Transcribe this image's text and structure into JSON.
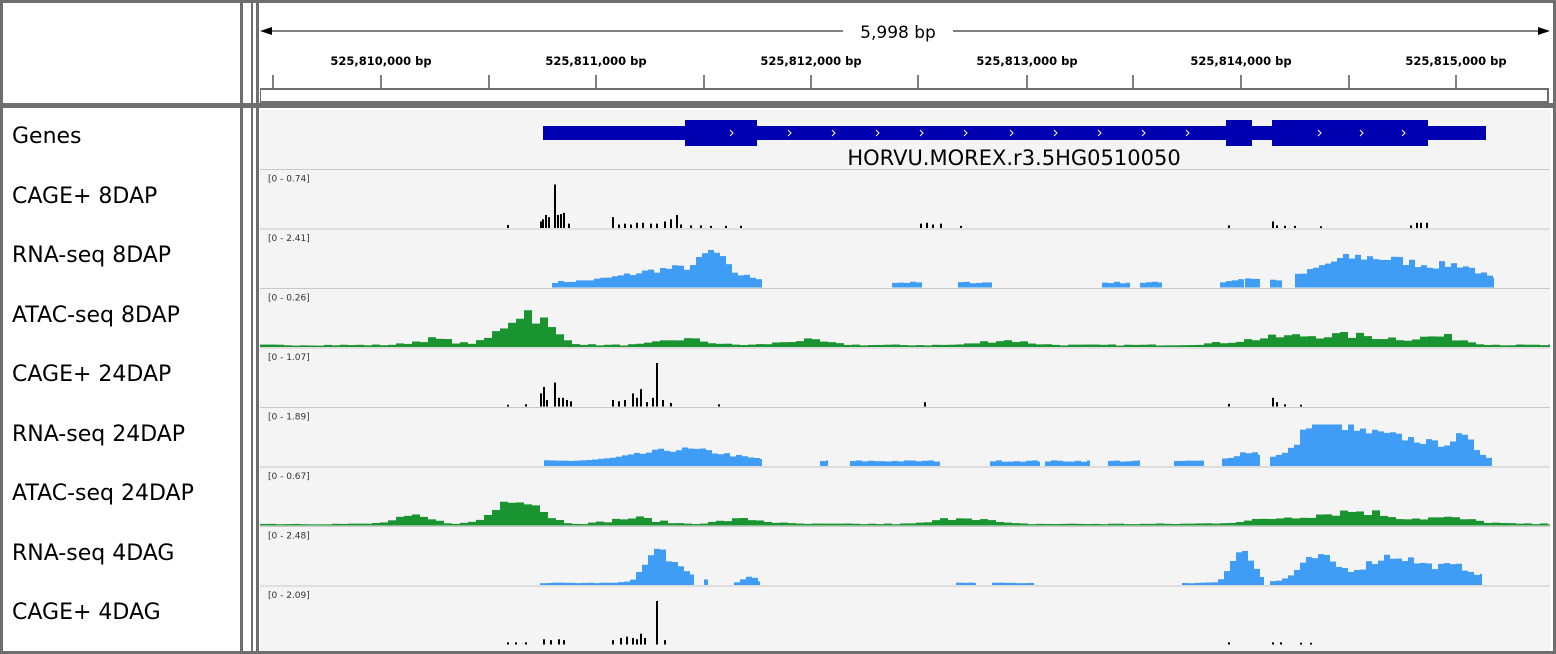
{
  "ruler": {
    "span_label": "5,998 bp",
    "tick_labels": [
      "525,810,000 bp",
      "525,811,000 bp",
      "525,812,000 bp",
      "525,813,000 bp",
      "525,814,000 bp",
      "525,815,000 bp"
    ]
  },
  "gene": {
    "name": "HORVU.MOREX.r3.5HG0510050",
    "strand": "+"
  },
  "colors": {
    "gene": "#0000b2",
    "rna": "#3f9df5",
    "atac": "#1a9431",
    "cage": "#000000",
    "panel_border": "#6e6e6e",
    "track_bg": "#f4f4f4"
  },
  "tracks": [
    {
      "name": "Genes",
      "type": "gene",
      "range": ""
    },
    {
      "name": "CAGE+ 8DAP",
      "type": "cage",
      "range": "[0 - 0.74]"
    },
    {
      "name": "RNA-seq 8DAP",
      "type": "rna",
      "range": "[0 - 2.41]"
    },
    {
      "name": "ATAC-seq 8DAP",
      "type": "atac",
      "range": "[0 - 0.26]"
    },
    {
      "name": "CAGE+ 24DAP",
      "type": "cage",
      "range": "[0 - 1.07]"
    },
    {
      "name": "RNA-seq 24DAP",
      "type": "rna",
      "range": "[0 - 1.89]"
    },
    {
      "name": "ATAC-seq 24DAP",
      "type": "atac",
      "range": "[0 - 0.67]"
    },
    {
      "name": "RNA-seq 4DAG",
      "type": "rna",
      "range": "[0 - 2.48]"
    },
    {
      "name": "CAGE+ 4DAG",
      "type": "cage",
      "range": "[0 - 2.09]"
    }
  ]
}
